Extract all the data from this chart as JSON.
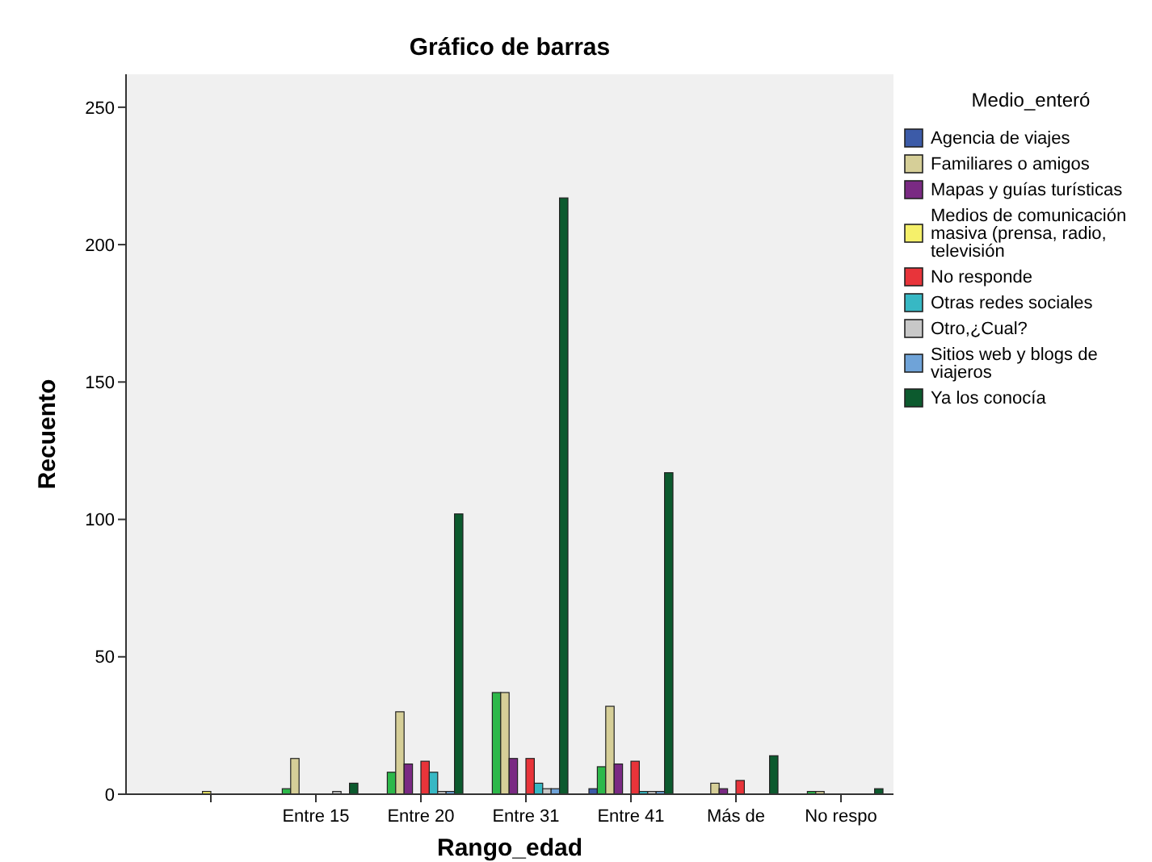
{
  "chart_data": {
    "type": "bar",
    "title": "Gráfico de barras",
    "xlabel": "Rango_edad",
    "ylabel": "Recuento",
    "legend_title": "Medio_enteró",
    "legend": "right",
    "grid": false,
    "categories": [
      null,
      "Entre 15",
      "Entre 20",
      "Entre 31",
      "Entre 41",
      "Más de",
      "No respo"
    ],
    "ylim": [
      0,
      262
    ],
    "yticks": [
      0,
      50,
      100,
      150,
      200,
      250
    ],
    "series": [
      {
        "name": "Agencia de viajes",
        "color": "#3c5ba8",
        "values": [
          0,
          0,
          0,
          0,
          2,
          0,
          0
        ]
      },
      {
        "color": "#2db84a",
        "values": [
          0,
          2,
          8,
          37,
          10,
          0,
          1
        ]
      },
      {
        "name": "Familiares o amigos",
        "color": "#d6cf98",
        "values": [
          0,
          13,
          30,
          37,
          32,
          4,
          1
        ]
      },
      {
        "name": "Mapas y guías turísticas",
        "color": "#7a2a83",
        "values": [
          0,
          0,
          11,
          13,
          11,
          2,
          0
        ]
      },
      {
        "name": "Medios de comunicación masiva (prensa, radio, televisión",
        "color": "#f5f06a",
        "values": [
          1,
          0,
          0,
          0,
          0,
          0,
          0
        ]
      },
      {
        "name": "No responde",
        "color": "#e8343a",
        "values": [
          0,
          0,
          12,
          13,
          12,
          5,
          0
        ]
      },
      {
        "name": "Otras redes sociales",
        "color": "#37b8c4",
        "values": [
          0,
          0,
          8,
          4,
          1,
          0,
          0
        ]
      },
      {
        "name": "Otro,¿Cual?",
        "color": "#c8c8c8",
        "values": [
          0,
          1,
          1,
          2,
          1,
          0,
          0
        ]
      },
      {
        "name": "Sitios web y blogs de viajeros",
        "color": "#6fa3d8",
        "values": [
          0,
          0,
          1,
          2,
          1,
          0,
          0
        ]
      },
      {
        "name": "Ya los conocía",
        "color": "#0c5a2e",
        "values": [
          0,
          4,
          102,
          217,
          117,
          14,
          2
        ]
      }
    ]
  }
}
